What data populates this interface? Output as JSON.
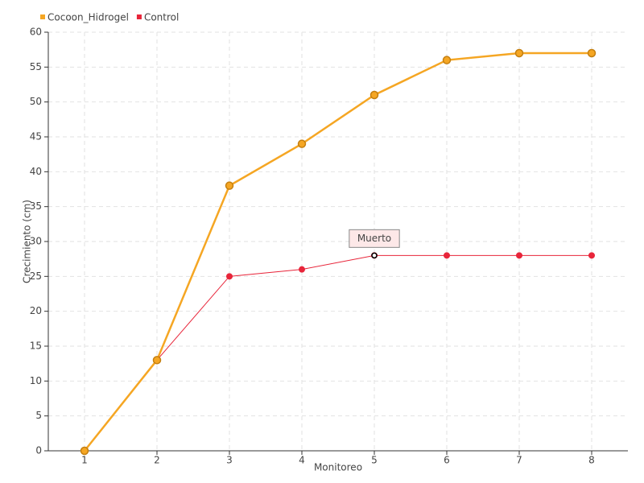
{
  "chart_data": {
    "type": "line",
    "x_label": "Monitoreo",
    "y_label": "Crecimiento (cm)",
    "x": [
      1,
      2,
      3,
      4,
      5,
      6,
      7,
      8
    ],
    "xlim": [
      0.5,
      8.5
    ],
    "xticks": [
      1,
      2,
      3,
      4,
      5,
      6,
      7,
      8
    ],
    "ylim": [
      0,
      60
    ],
    "yticks": [
      0,
      5,
      10,
      15,
      20,
      25,
      30,
      35,
      40,
      45,
      50,
      55,
      60
    ],
    "grid": true,
    "legend": "top-left",
    "series": [
      {
        "name": "Cocoon_Hidrogel",
        "color": "#f5a623",
        "values": [
          0,
          13,
          38,
          44,
          51,
          56,
          57,
          57
        ]
      },
      {
        "name": "Control",
        "color": "#e8253a",
        "values": [
          0,
          13,
          25,
          26,
          28,
          28,
          28,
          28
        ]
      }
    ],
    "annotations": [
      {
        "text": "Muerto",
        "x": 5,
        "y": 28
      }
    ]
  }
}
